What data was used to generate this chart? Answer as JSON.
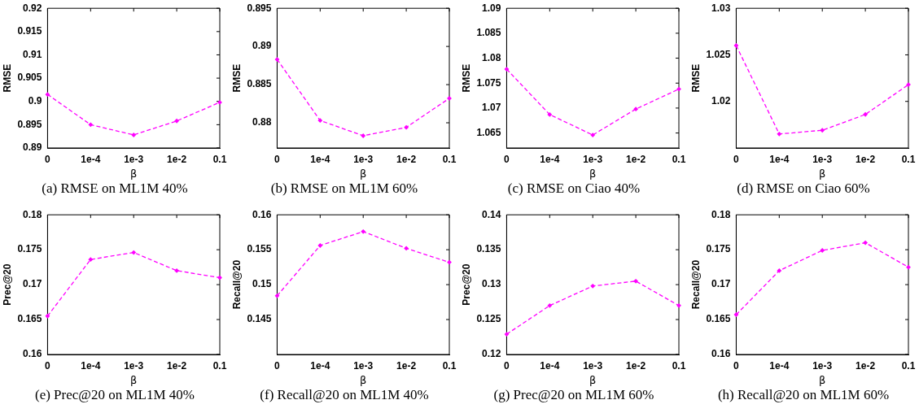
{
  "chart_data": [
    {
      "type": "line",
      "title": "(a)  RMSE on ML1M 40%",
      "categories": [
        "0",
        "1e-4",
        "1e-3",
        "1e-2",
        "0.1"
      ],
      "xlabel": "β",
      "ylabel": "RMSE",
      "ylim": [
        0.89,
        0.92
      ],
      "yticks": [
        0.89,
        0.895,
        0.9,
        0.905,
        0.91,
        0.915,
        0.92
      ],
      "series": [
        {
          "color": "#ff00ff",
          "values": [
            0.9015,
            0.895,
            0.8928,
            0.8958,
            0.8998
          ]
        }
      ],
      "marker": "diamond",
      "line_style": "dashed",
      "grid": false,
      "legend": false
    },
    {
      "type": "line",
      "title": "(b)  RMSE on ML1M 60%",
      "categories": [
        "0",
        "1e-4",
        "1e-3",
        "1e-2",
        "0.1"
      ],
      "xlabel": "β",
      "ylabel": "RMSE",
      "ylim": [
        0.8767,
        0.895
      ],
      "yticks": [
        0.88,
        0.885,
        0.89,
        0.895
      ],
      "series": [
        {
          "color": "#ff00ff",
          "values": [
            0.8883,
            0.8803,
            0.8783,
            0.8794,
            0.8832
          ]
        }
      ],
      "marker": "diamond",
      "line_style": "dashed",
      "grid": false,
      "legend": false
    },
    {
      "type": "line",
      "title": "(c)  RMSE on Ciao 40%",
      "categories": [
        "0",
        "1e-4",
        "1e-3",
        "1e-2",
        "0.1"
      ],
      "xlabel": "β",
      "ylabel": "RMSE",
      "ylim": [
        1.062,
        1.09
      ],
      "yticks": [
        1.065,
        1.07,
        1.075,
        1.08,
        1.085,
        1.09
      ],
      "series": [
        {
          "color": "#ff00ff",
          "values": [
            1.0778,
            1.0687,
            1.0646,
            1.0698,
            1.0738
          ]
        }
      ],
      "marker": "diamond",
      "line_style": "dashed",
      "grid": false,
      "legend": false
    },
    {
      "type": "line",
      "title": "(d)  RMSE on Ciao 60%",
      "categories": [
        "0",
        "1e-4",
        "1e-3",
        "1e-2",
        "0.1"
      ],
      "xlabel": "β",
      "ylabel": "RMSE",
      "ylim": [
        1.015,
        1.03
      ],
      "yticks": [
        1.02,
        1.025,
        1.03
      ],
      "series": [
        {
          "color": "#ff00ff",
          "values": [
            1.026,
            1.0165,
            1.0169,
            1.0186,
            1.0218
          ]
        }
      ],
      "marker": "diamond",
      "line_style": "dashed",
      "grid": false,
      "legend": false
    },
    {
      "type": "line",
      "title": "(e)  Prec@20 on ML1M 40%",
      "categories": [
        "0",
        "1e-4",
        "1e-3",
        "1e-2",
        "0.1"
      ],
      "xlabel": "β",
      "ylabel": "Prec@20",
      "ylim": [
        0.16,
        0.18
      ],
      "yticks": [
        0.16,
        0.165,
        0.17,
        0.175,
        0.18
      ],
      "series": [
        {
          "color": "#ff00ff",
          "values": [
            0.1655,
            0.1736,
            0.1746,
            0.172,
            0.171
          ]
        }
      ],
      "marker": "diamond",
      "line_style": "dashed",
      "grid": false,
      "legend": false
    },
    {
      "type": "line",
      "title": "(f)  Recall@20 on ML1M 40%",
      "categories": [
        "0",
        "1e-4",
        "1e-3",
        "1e-2",
        "0.1"
      ],
      "xlabel": "β",
      "ylabel": "Recall@20",
      "ylim": [
        0.14,
        0.16
      ],
      "yticks": [
        0.145,
        0.15,
        0.155,
        0.16
      ],
      "series": [
        {
          "color": "#ff00ff",
          "values": [
            0.1484,
            0.1556,
            0.1576,
            0.1552,
            0.1532
          ]
        }
      ],
      "marker": "diamond",
      "line_style": "dashed",
      "grid": false,
      "legend": false
    },
    {
      "type": "line",
      "title": "(g)  Prec@20 on ML1M 60%",
      "categories": [
        "0",
        "1e-4",
        "1e-3",
        "1e-2",
        "0.1"
      ],
      "xlabel": "β",
      "ylabel": "Prec@20",
      "ylim": [
        0.12,
        0.14
      ],
      "yticks": [
        0.12,
        0.125,
        0.13,
        0.135,
        0.14
      ],
      "series": [
        {
          "color": "#ff00ff",
          "values": [
            0.1229,
            0.127,
            0.1298,
            0.1305,
            0.127
          ]
        }
      ],
      "marker": "diamond",
      "line_style": "dashed",
      "grid": false,
      "legend": false
    },
    {
      "type": "line",
      "title": "(h)  Recall@20 on ML1M 60%",
      "categories": [
        "0",
        "1e-4",
        "1e-3",
        "1e-2",
        "0.1"
      ],
      "xlabel": "β",
      "ylabel": "Recall@20",
      "ylim": [
        0.16,
        0.18
      ],
      "yticks": [
        0.16,
        0.165,
        0.17,
        0.175,
        0.18
      ],
      "series": [
        {
          "color": "#ff00ff",
          "values": [
            0.1657,
            0.172,
            0.1749,
            0.176,
            0.1725
          ]
        }
      ],
      "marker": "diamond",
      "line_style": "dashed",
      "grid": false,
      "legend": false
    }
  ]
}
